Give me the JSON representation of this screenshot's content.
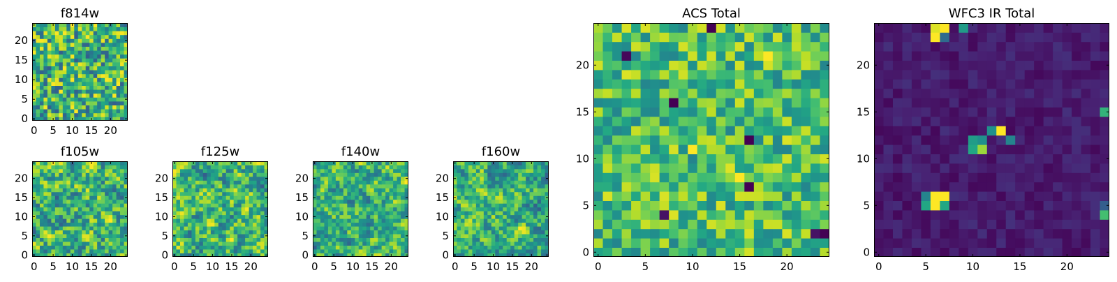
{
  "figure": {
    "colormap": "viridis"
  },
  "chart_data": [
    {
      "type": "heatmap",
      "title": "f814w",
      "grid_size": [
        25,
        25
      ],
      "seed": 11,
      "smooth": 0,
      "value_range": [
        0.3,
        1.0
      ],
      "xlim": [
        -0.5,
        24.5
      ],
      "ylim": [
        -0.5,
        24.5
      ],
      "xticks": [
        0,
        5,
        10,
        15,
        20
      ],
      "yticks": [
        0,
        5,
        10,
        15,
        20
      ],
      "xtick_labels": [
        "0",
        "5",
        "10",
        "15",
        "20"
      ],
      "ytick_labels": [
        "0",
        "5",
        "10",
        "15",
        "20"
      ],
      "peaks": []
    },
    {
      "type": "heatmap",
      "title": "f105w",
      "grid_size": [
        25,
        25
      ],
      "seed": 23,
      "smooth": 1,
      "value_range": [
        0.3,
        1.0
      ],
      "xlim": [
        -0.5,
        24.5
      ],
      "ylim": [
        -0.5,
        24.5
      ],
      "xticks": [
        0,
        5,
        10,
        15,
        20
      ],
      "yticks": [
        0,
        5,
        10,
        15,
        20
      ],
      "xtick_labels": [
        "0",
        "5",
        "10",
        "15",
        "20"
      ],
      "ytick_labels": [
        "0",
        "5",
        "10",
        "15",
        "20"
      ],
      "peaks": []
    },
    {
      "type": "heatmap",
      "title": "f125w",
      "grid_size": [
        25,
        25
      ],
      "seed": 37,
      "smooth": 1,
      "value_range": [
        0.3,
        1.0
      ],
      "xlim": [
        -0.5,
        24.5
      ],
      "ylim": [
        -0.5,
        24.5
      ],
      "xticks": [
        0,
        5,
        10,
        15,
        20
      ],
      "yticks": [
        0,
        5,
        10,
        15,
        20
      ],
      "xtick_labels": [
        "0",
        "5",
        "10",
        "15",
        "20"
      ],
      "ytick_labels": [
        "0",
        "5",
        "10",
        "15",
        "20"
      ],
      "peaks": []
    },
    {
      "type": "heatmap",
      "title": "f140w",
      "grid_size": [
        25,
        25
      ],
      "seed": 41,
      "smooth": 1,
      "value_range": [
        0.3,
        1.0
      ],
      "xlim": [
        -0.5,
        24.5
      ],
      "ylim": [
        -0.5,
        24.5
      ],
      "xticks": [
        0,
        5,
        10,
        15,
        20
      ],
      "yticks": [
        0,
        5,
        10,
        15,
        20
      ],
      "xtick_labels": [
        "0",
        "5",
        "10",
        "15",
        "20"
      ],
      "ytick_labels": [
        "0",
        "5",
        "10",
        "15",
        "20"
      ],
      "peaks": []
    },
    {
      "type": "heatmap",
      "title": "f160w",
      "grid_size": [
        25,
        25
      ],
      "seed": 53,
      "smooth": 1,
      "value_range": [
        0.3,
        1.0
      ],
      "xlim": [
        -0.5,
        24.5
      ],
      "ylim": [
        -0.5,
        24.5
      ],
      "xticks": [
        0,
        5,
        10,
        15,
        20
      ],
      "yticks": [
        0,
        5,
        10,
        15,
        20
      ],
      "xtick_labels": [
        "0",
        "5",
        "10",
        "15",
        "20"
      ],
      "ytick_labels": [
        "0",
        "5",
        "10",
        "15",
        "20"
      ],
      "peaks": []
    },
    {
      "type": "heatmap",
      "title": "ACS Total",
      "grid_size": [
        25,
        25
      ],
      "seed": 67,
      "smooth": 0,
      "value_range": [
        0.45,
        0.95
      ],
      "xlim": [
        -0.5,
        24.5
      ],
      "ylim": [
        -0.5,
        24.5
      ],
      "xticks": [
        0,
        5,
        10,
        15,
        20
      ],
      "yticks": [
        0,
        5,
        10,
        15,
        20
      ],
      "xtick_labels": [
        "0",
        "5",
        "10",
        "15",
        "20"
      ],
      "ytick_labels": [
        "0",
        "5",
        "10",
        "15",
        "20"
      ],
      "peaks": [
        {
          "x": 12,
          "y": 24,
          "v": 0.0
        },
        {
          "x": 3,
          "y": 21,
          "v": 0.02
        },
        {
          "x": 8,
          "y": 16,
          "v": 0.0
        },
        {
          "x": 16,
          "y": 12,
          "v": 0.0
        },
        {
          "x": 16,
          "y": 7,
          "v": 0.0
        },
        {
          "x": 7,
          "y": 4,
          "v": 0.05
        },
        {
          "x": 24,
          "y": 2,
          "v": 0.0
        },
        {
          "x": 23,
          "y": 2,
          "v": 0.05
        },
        {
          "x": 10,
          "y": 11,
          "v": 1.0
        },
        {
          "x": 15,
          "y": 8,
          "v": 1.0
        },
        {
          "x": 18,
          "y": 21,
          "v": 1.0
        }
      ]
    },
    {
      "type": "heatmap",
      "title": "WFC3 IR Total",
      "grid_size": [
        25,
        25
      ],
      "seed": 79,
      "smooth": 0,
      "value_range": [
        0.02,
        0.14
      ],
      "xlim": [
        -0.5,
        24.5
      ],
      "ylim": [
        -0.5,
        24.5
      ],
      "xticks": [
        0,
        5,
        10,
        15,
        20
      ],
      "yticks": [
        0,
        5,
        10,
        15,
        20
      ],
      "xtick_labels": [
        "0",
        "5",
        "10",
        "15",
        "20"
      ],
      "ytick_labels": [
        "0",
        "5",
        "10",
        "15",
        "20"
      ],
      "peaks": [
        {
          "x": 7,
          "y": 24,
          "v": 1.0
        },
        {
          "x": 6,
          "y": 24,
          "v": 0.95
        },
        {
          "x": 6,
          "y": 23,
          "v": 1.0
        },
        {
          "x": 7,
          "y": 23,
          "v": 0.35
        },
        {
          "x": 9,
          "y": 24,
          "v": 0.55
        },
        {
          "x": 12,
          "y": 13,
          "v": 0.5
        },
        {
          "x": 13,
          "y": 13,
          "v": 1.0
        },
        {
          "x": 11,
          "y": 12,
          "v": 0.5
        },
        {
          "x": 10,
          "y": 12,
          "v": 0.55
        },
        {
          "x": 10,
          "y": 11,
          "v": 0.6
        },
        {
          "x": 11,
          "y": 11,
          "v": 0.85
        },
        {
          "x": 14,
          "y": 12,
          "v": 0.45
        },
        {
          "x": 6,
          "y": 6,
          "v": 1.0
        },
        {
          "x": 7,
          "y": 6,
          "v": 1.0
        },
        {
          "x": 6,
          "y": 5,
          "v": 1.0
        },
        {
          "x": 5,
          "y": 5,
          "v": 0.6
        },
        {
          "x": 5,
          "y": 6,
          "v": 0.45
        },
        {
          "x": 7,
          "y": 5,
          "v": 0.6
        },
        {
          "x": 24,
          "y": 15,
          "v": 0.65
        },
        {
          "x": 24,
          "y": 4,
          "v": 0.7
        },
        {
          "x": 24,
          "y": 5,
          "v": 0.3
        }
      ]
    }
  ]
}
